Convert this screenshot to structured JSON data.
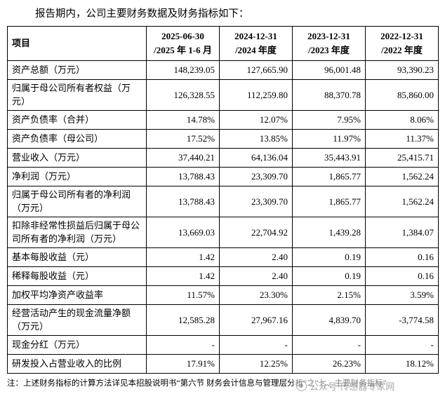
{
  "title": "报告期内，公司主要财务数据及财务指标如下：",
  "table": {
    "header": {
      "item": "项目",
      "periods": [
        {
          "line1": "2025-06-30",
          "line2": "/2025 年 1-6 月"
        },
        {
          "line1": "2024-12-31",
          "line2": "/2024 年度"
        },
        {
          "line1": "2023-12-31",
          "line2": "/2023 年度"
        },
        {
          "line1": "2022-12-31",
          "line2": "/2022 年度"
        }
      ]
    },
    "rows": [
      {
        "label": "资产总额（万元）",
        "values": [
          "148,239.05",
          "127,665.90",
          "96,001.48",
          "93,390.23"
        ]
      },
      {
        "label": "归属于母公司所有者权益（万元）",
        "values": [
          "126,328.55",
          "112,259.80",
          "88,370.78",
          "85,860.00"
        ]
      },
      {
        "label": "资产负债率（合并）",
        "values": [
          "14.78%",
          "12.07%",
          "7.95%",
          "8.06%"
        ]
      },
      {
        "label": "资产负债率（母公司）",
        "values": [
          "17.52%",
          "13.85%",
          "11.97%",
          "11.37%"
        ]
      },
      {
        "label": "营业收入（万元）",
        "values": [
          "37,440.21",
          "64,136.04",
          "35,443.91",
          "25,415.71"
        ]
      },
      {
        "label": "净利润（万元）",
        "values": [
          "13,788.43",
          "23,309.70",
          "1,865.77",
          "1,562.24"
        ]
      },
      {
        "label": "归属于母公司所有者的净利润（万元）",
        "values": [
          "13,788.43",
          "23,309.70",
          "1,865.77",
          "1,562.24"
        ]
      },
      {
        "label": "扣除非经常性损益后归属于母公司所有者的净利润（万元）",
        "values": [
          "13,669.03",
          "22,704.92",
          "1,439.28",
          "1,384.07"
        ]
      },
      {
        "label": "基本每股收益（元）",
        "values": [
          "1.42",
          "2.40",
          "0.19",
          "0.16"
        ]
      },
      {
        "label": "稀释每股收益（元）",
        "values": [
          "1.42",
          "2.40",
          "0.19",
          "0.16"
        ]
      },
      {
        "label": "加权平均净资产收益率",
        "values": [
          "11.57%",
          "23.30%",
          "2.15%",
          "3.59%"
        ]
      },
      {
        "label": "经营活动产生的现金流量净额（万元）",
        "values": [
          "12,585.28",
          "27,967.16",
          "4,839.70",
          "-3,774.58"
        ]
      },
      {
        "label": "现金分红（万元）",
        "values": [
          "-",
          "-",
          "-",
          "-"
        ]
      },
      {
        "label": "研发投入占营业收入的比例",
        "values": [
          "17.91%",
          "12.25%",
          "26.23%",
          "18.12%"
        ]
      }
    ]
  },
  "note": "注：上述财务指标的计算方法详见本招股说明书“第六节 财务会计信息与管理层分析”之“七、主要财务指标”",
  "watermark": {
    "text": "公众号·传感器专家网"
  }
}
